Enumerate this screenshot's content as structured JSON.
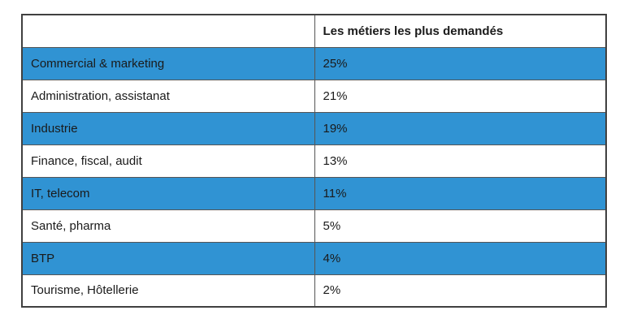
{
  "table": {
    "header": {
      "label_column": "",
      "value_column": "Les métiers les plus demandés"
    },
    "rows": [
      {
        "label": "Commercial & marketing",
        "value": "25%",
        "highlighted": true
      },
      {
        "label": "Administration, assistanat",
        "value": "21%",
        "highlighted": false
      },
      {
        "label": "Industrie",
        "value": "19%",
        "highlighted": true
      },
      {
        "label": "Finance, fiscal, audit",
        "value": "13%",
        "highlighted": false
      },
      {
        "label": "IT, telecom",
        "value": "11%",
        "highlighted": true
      },
      {
        "label": "Santé, pharma",
        "value": "5%",
        "highlighted": false
      },
      {
        "label": "BTP",
        "value": "4%",
        "highlighted": true
      },
      {
        "label": "Tourisme, Hôtellerie",
        "value": "2%",
        "highlighted": false
      }
    ]
  },
  "colors": {
    "row_highlight": "#3093d3",
    "border_outer": "#404040",
    "border_inner": "#555555",
    "text": "#1a1a1a",
    "background": "#ffffff"
  },
  "chart_data": {
    "type": "table",
    "title": "Les métiers les plus demandés",
    "categories": [
      "Commercial & marketing",
      "Administration, assistanat",
      "Industrie",
      "Finance, fiscal, audit",
      "IT, telecom",
      "Santé, pharma",
      "BTP",
      "Tourisme, Hôtellerie"
    ],
    "values": [
      25,
      21,
      19,
      13,
      11,
      5,
      4,
      2
    ],
    "unit": "%",
    "xlabel": "",
    "ylabel": "",
    "legend": "none",
    "grid": "table-borders"
  }
}
